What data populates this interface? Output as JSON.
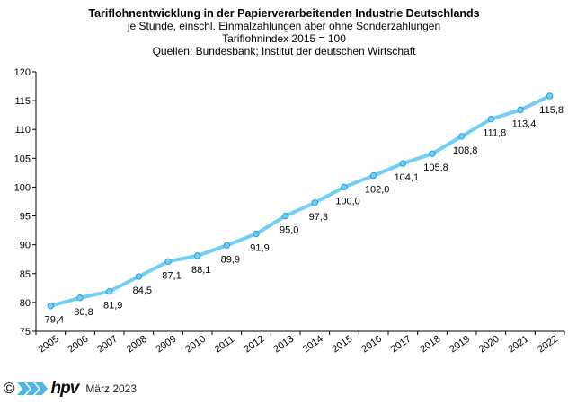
{
  "chart_data": {
    "type": "line",
    "title": "Tariflohnentwicklung in der Papierverarbeitenden Industrie Deutschlands",
    "subtitle_lines": [
      "je Stunde, einschl. Einmalzahlungen  aber ohne Sonderzahlungen",
      "Tariflohnindex  2015  = 100",
      "Quellen: Bundesbank; Institut der deutschen Wirtschaft"
    ],
    "xlabel": "",
    "ylabel": "",
    "x": [
      "2005",
      "2006",
      "2007",
      "2008",
      "2009",
      "2010",
      "2011",
      "2012",
      "2013",
      "2014",
      "2015",
      "2016",
      "2017",
      "2018",
      "2019",
      "2020",
      "2021",
      "2022"
    ],
    "series": [
      {
        "values": [
          79.4,
          80.8,
          81.9,
          84.5,
          87.1,
          88.1,
          89.9,
          91.9,
          95.0,
          97.3,
          100.0,
          102.0,
          104.1,
          105.8,
          108.8,
          111.8,
          113.4,
          115.8
        ],
        "labels": [
          "79,4",
          "80,8",
          "81,9",
          "84,5",
          "87,1",
          "88,1",
          "89,9",
          "91,9",
          "95,0",
          "97,3",
          "100,0",
          "102,0",
          "104,1",
          "105,8",
          "108,8",
          "111,8",
          "113,4",
          "115,8"
        ],
        "color": "#6fd0f3"
      }
    ],
    "ylim": [
      75,
      120
    ],
    "yticks": [
      75,
      80,
      85,
      90,
      95,
      100,
      105,
      110,
      115,
      120
    ],
    "grid": false,
    "legend": "none"
  },
  "footer": {
    "copyright": "©",
    "brand": "hpv",
    "date": "März 2023"
  },
  "colors": {
    "line": "#6fd0f3",
    "marker_stroke": "#2b9fd6",
    "axis": "#000000",
    "logo": "#4fb6e6"
  }
}
